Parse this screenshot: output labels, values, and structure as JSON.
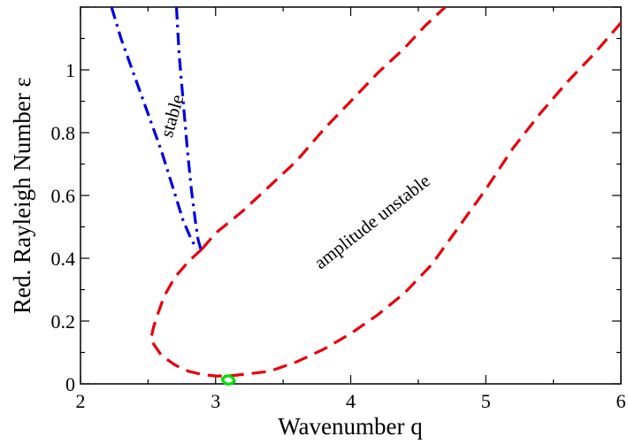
{
  "chart_data": {
    "type": "line",
    "xlabel": "Wavenumber q",
    "ylabel": "Red. Rayleigh Number ε",
    "xlim": [
      2,
      6
    ],
    "ylim": [
      0,
      1.2
    ],
    "x_ticks": [
      "2",
      "3",
      "4",
      "5",
      "6"
    ],
    "y_ticks": [
      "0",
      "0.2",
      "0.4",
      "0.6",
      "0.8",
      "1"
    ],
    "grid": false,
    "annotations": [
      "stable",
      "amplitude unstable"
    ],
    "series": [
      {
        "color": "#e8000b",
        "style": "dashed",
        "points": [
          [
            2.9,
            0.43
          ],
          [
            2.8,
            0.39
          ],
          [
            2.7,
            0.34
          ],
          [
            2.62,
            0.28
          ],
          [
            2.57,
            0.22
          ],
          [
            2.54,
            0.18
          ],
          [
            2.52,
            0.14
          ],
          [
            2.6,
            0.09
          ],
          [
            2.7,
            0.06
          ],
          [
            2.8,
            0.04
          ],
          [
            2.9,
            0.03
          ],
          [
            3.0,
            0.025
          ],
          [
            3.1,
            0.025
          ],
          [
            3.2,
            0.03
          ],
          [
            3.4,
            0.04
          ],
          [
            3.6,
            0.07
          ],
          [
            3.8,
            0.11
          ],
          [
            4.0,
            0.16
          ],
          [
            4.2,
            0.22
          ],
          [
            4.4,
            0.29
          ],
          [
            4.6,
            0.38
          ],
          [
            4.8,
            0.5
          ],
          [
            5.0,
            0.62
          ],
          [
            5.2,
            0.75
          ],
          [
            5.4,
            0.86
          ],
          [
            5.6,
            0.96
          ],
          [
            5.8,
            1.05
          ],
          [
            6.0,
            1.15
          ]
        ]
      },
      {
        "color": "#e8000b",
        "style": "dashed",
        "points": [
          [
            2.9,
            0.43
          ],
          [
            3.0,
            0.48
          ],
          [
            3.2,
            0.55
          ],
          [
            3.4,
            0.63
          ],
          [
            3.6,
            0.71
          ],
          [
            3.8,
            0.81
          ],
          [
            4.0,
            0.9
          ],
          [
            4.2,
            0.99
          ],
          [
            4.4,
            1.07
          ],
          [
            4.55,
            1.14
          ],
          [
            4.7,
            1.2
          ]
        ]
      },
      {
        "color": "#0000e0",
        "style": "dashdot",
        "points": [
          [
            2.23,
            1.2
          ],
          [
            2.3,
            1.1
          ],
          [
            2.4,
            0.98
          ],
          [
            2.5,
            0.86
          ],
          [
            2.6,
            0.74
          ],
          [
            2.68,
            0.63
          ],
          [
            2.76,
            0.52
          ],
          [
            2.82,
            0.46
          ],
          [
            2.86,
            0.43
          ]
        ]
      },
      {
        "color": "#0000e0",
        "style": "dashdot",
        "points": [
          [
            2.71,
            1.2
          ],
          [
            2.73,
            1.05
          ],
          [
            2.76,
            0.9
          ],
          [
            2.79,
            0.75
          ],
          [
            2.82,
            0.62
          ],
          [
            2.85,
            0.52
          ],
          [
            2.87,
            0.46
          ],
          [
            2.89,
            0.43
          ]
        ]
      },
      {
        "color": "#00e000",
        "style": "solid",
        "points": [
          [
            3.06,
            0.005
          ],
          [
            3.05,
            0.015
          ],
          [
            3.07,
            0.024
          ],
          [
            3.1,
            0.026
          ],
          [
            3.13,
            0.018
          ],
          [
            3.14,
            0.008
          ],
          [
            3.12,
            0.001
          ],
          [
            3.09,
            -0.001
          ],
          [
            3.06,
            0.005
          ]
        ]
      }
    ]
  }
}
